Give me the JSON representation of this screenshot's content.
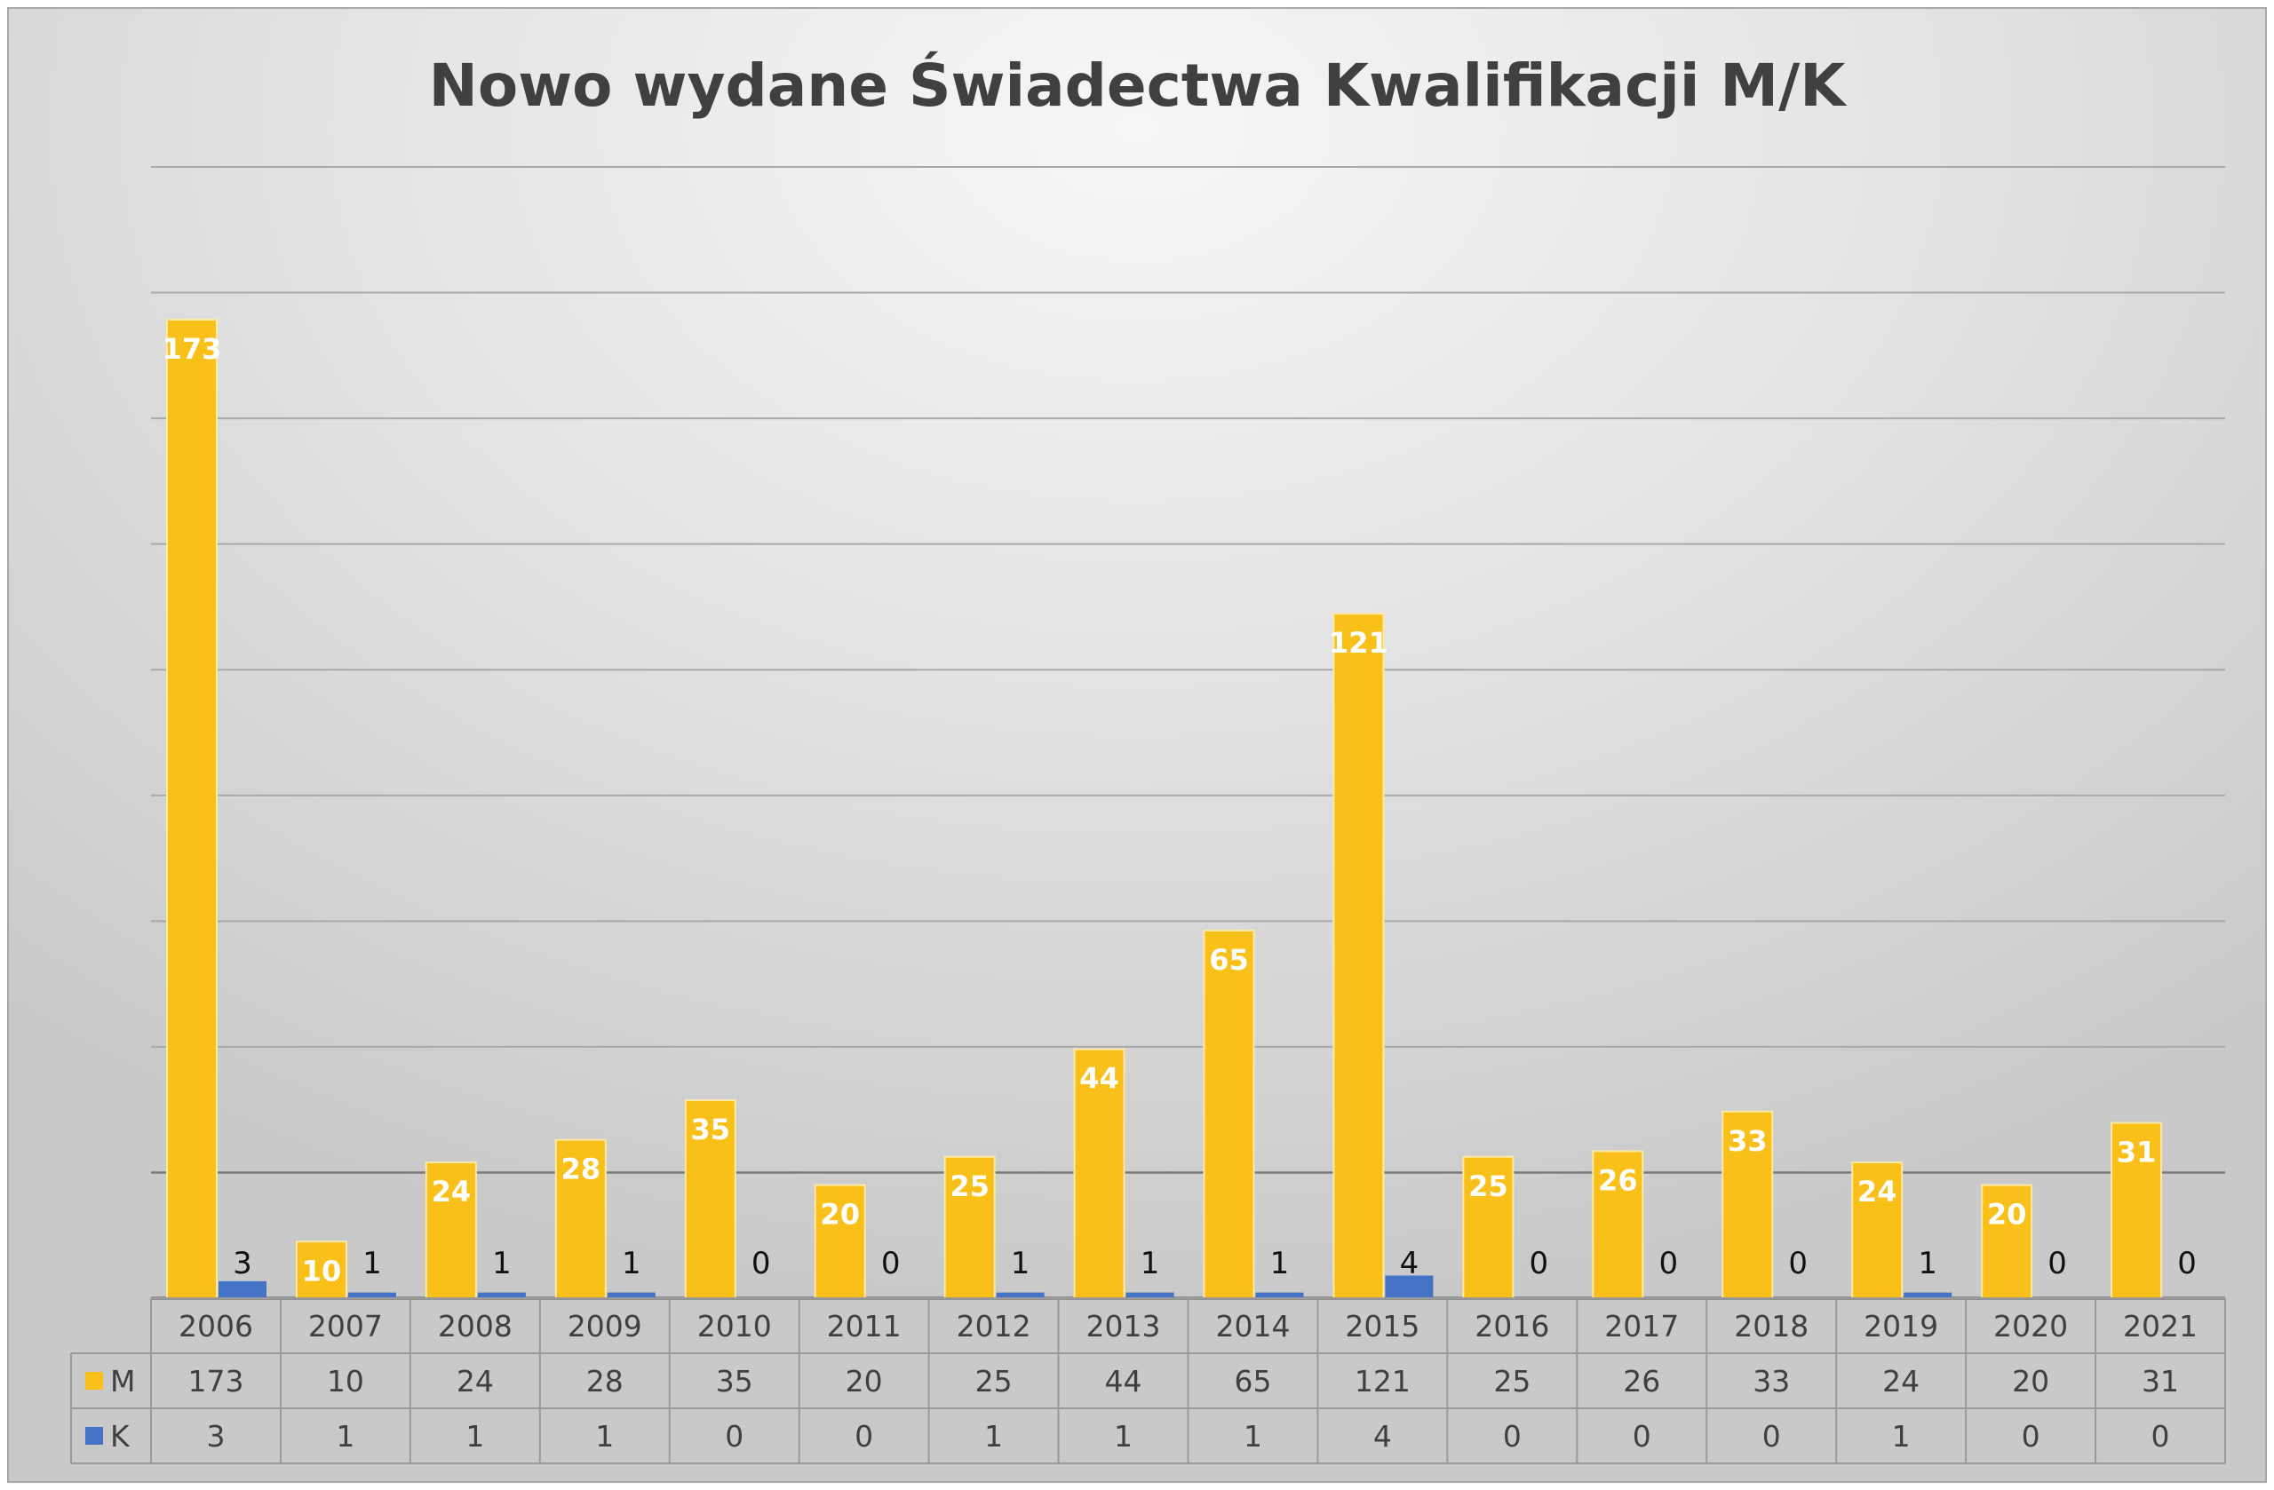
{
  "chart_data": {
    "type": "bar",
    "title": "Nowo wydane Świadectwa Kwalifikacji M/K",
    "categories": [
      "2006",
      "2007",
      "2008",
      "2009",
      "2010",
      "2011",
      "2012",
      "2013",
      "2014",
      "2015",
      "2016",
      "2017",
      "2018",
      "2019",
      "2020",
      "2021"
    ],
    "series": [
      {
        "name": "M",
        "color": "#F9C01A",
        "values": [
          173,
          10,
          24,
          28,
          35,
          20,
          25,
          44,
          65,
          121,
          25,
          26,
          33,
          24,
          20,
          31
        ]
      },
      {
        "name": "K",
        "color": "#4472C4",
        "values": [
          3,
          1,
          1,
          1,
          0,
          0,
          1,
          1,
          1,
          4,
          0,
          0,
          0,
          1,
          0,
          0
        ]
      }
    ],
    "ylim": [
      0,
      200
    ],
    "gridlines": true,
    "data_labels": true,
    "data_table": true,
    "legend": "data-table"
  }
}
